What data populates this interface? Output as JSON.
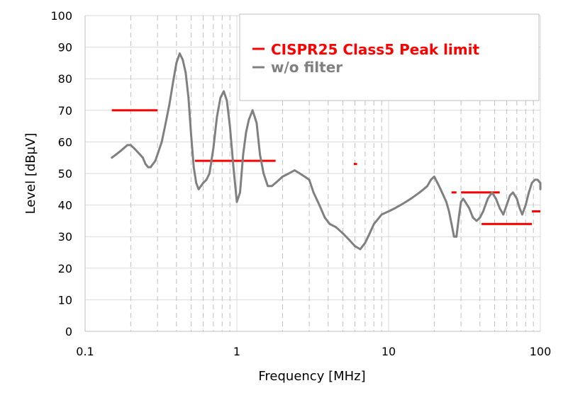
{
  "chart_data": {
    "type": "line",
    "xscale": "log",
    "xlabel": "Frequency [MHz]",
    "ylabel": "Level [dBµV]",
    "xlim": [
      0.1,
      100
    ],
    "ylim": [
      0,
      100
    ],
    "x_ticks": [
      0.1,
      1,
      10,
      100
    ],
    "x_tick_labels": [
      "0.1",
      "1",
      "10",
      "100"
    ],
    "y_ticks": [
      0,
      10,
      20,
      30,
      40,
      50,
      60,
      70,
      80,
      90,
      100
    ],
    "y_tick_labels": [
      "0",
      "10",
      "20",
      "30",
      "40",
      "50",
      "60",
      "70",
      "80",
      "90",
      "100"
    ],
    "grid": {
      "vertical": "dashed, minor decades",
      "horizontal": "solid"
    },
    "legend": {
      "placement": "top-right"
    },
    "series": [
      {
        "name": "CISPR25 Class5 Peak limit",
        "color": "#ff0000",
        "style": "horizontal segments",
        "segments": [
          {
            "x": [
              0.15,
              0.3
            ],
            "y": 70
          },
          {
            "x": [
              0.53,
              1.8
            ],
            "y": 54
          },
          {
            "x": [
              5.9,
              6.2
            ],
            "y": 53
          },
          {
            "x": [
              26,
              28
            ],
            "y": 44
          },
          {
            "x": [
              30,
              54
            ],
            "y": 44
          },
          {
            "x": [
              41,
              88
            ],
            "y": 34
          },
          {
            "x": [
              88,
              108
            ],
            "y": 38
          }
        ]
      },
      {
        "name": "w/o filter",
        "color": "#808080",
        "style": "line",
        "x": [
          0.15,
          0.16,
          0.17,
          0.18,
          0.19,
          0.2,
          0.21,
          0.22,
          0.23,
          0.24,
          0.25,
          0.26,
          0.27,
          0.28,
          0.29,
          0.3,
          0.32,
          0.34,
          0.36,
          0.38,
          0.4,
          0.42,
          0.44,
          0.46,
          0.48,
          0.5,
          0.52,
          0.54,
          0.56,
          0.58,
          0.6,
          0.63,
          0.66,
          0.7,
          0.74,
          0.78,
          0.82,
          0.86,
          0.9,
          0.95,
          1.0,
          1.05,
          1.1,
          1.15,
          1.2,
          1.27,
          1.35,
          1.42,
          1.5,
          1.6,
          1.7,
          1.8,
          1.9,
          2.0,
          2.2,
          2.4,
          2.6,
          2.8,
          3.0,
          3.2,
          3.5,
          3.8,
          4.1,
          4.5,
          5.0,
          5.5,
          6.0,
          6.5,
          7.0,
          7.5,
          8.0,
          9.0,
          10,
          11,
          12,
          13,
          14,
          15,
          16,
          17,
          18,
          19,
          20,
          21,
          22,
          23,
          24,
          25,
          26,
          27,
          28,
          29,
          30,
          31,
          32,
          34,
          36,
          38,
          40,
          42,
          45,
          48,
          51,
          54,
          57,
          60,
          63,
          66,
          70,
          73,
          76,
          80,
          84,
          88,
          92,
          96,
          100,
          104,
          108
        ],
        "y": [
          55,
          56,
          57,
          58,
          59,
          59,
          58,
          57,
          56,
          55,
          53,
          52,
          52,
          53,
          54,
          56,
          60,
          66,
          72,
          79,
          85,
          88,
          86,
          82,
          74,
          62,
          52,
          47,
          45,
          46,
          47,
          48,
          50,
          58,
          68,
          74,
          76,
          73,
          65,
          52,
          41,
          44,
          56,
          63,
          67,
          70,
          66,
          56,
          50,
          46,
          46,
          47,
          48,
          49,
          50,
          51,
          50,
          49,
          48,
          44,
          40,
          36,
          34,
          33,
          31,
          29,
          27,
          26,
          28,
          31,
          34,
          37,
          38,
          39,
          40,
          41,
          42,
          43,
          44,
          45,
          46,
          48,
          49,
          47,
          45,
          43,
          41,
          38,
          34,
          30,
          30,
          36,
          41,
          42,
          41,
          39,
          36,
          35,
          36,
          38,
          42,
          44,
          42,
          39,
          37,
          40,
          43,
          44,
          42,
          39,
          37,
          40,
          44,
          47,
          48,
          48,
          47,
          46,
          45
        ]
      }
    ]
  }
}
